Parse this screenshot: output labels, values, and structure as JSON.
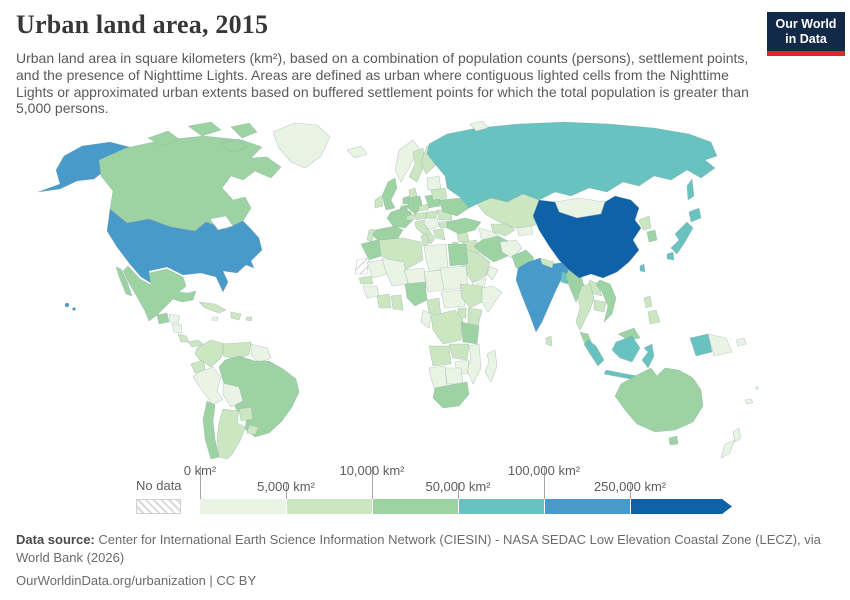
{
  "header": {
    "title": "Urban land area, 2015",
    "logo_line1": "Our World",
    "logo_line2": "in Data"
  },
  "subtitle": "Urban land area in square kilometers (km²), based on a combination of population counts (persons), settlement points, and the presence of Nighttime Lights. Areas are defined as urban where contiguous lighted cells from the Nighttime Lights or approximated urban extents based on buffered settlement points for which the total population is greater than 5,000 persons.",
  "legend": {
    "no_data_label": "No data",
    "segment_width": 86,
    "ticks": [
      {
        "label": "0 km²",
        "row": "top",
        "pos": 0
      },
      {
        "label": "5,000 km²",
        "row": "bottom",
        "pos": 1
      },
      {
        "label": "10,000 km²",
        "row": "top",
        "pos": 2
      },
      {
        "label": "50,000 km²",
        "row": "bottom",
        "pos": 3
      },
      {
        "label": "100,000 km²",
        "row": "top",
        "pos": 4
      },
      {
        "label": "250,000 km²",
        "row": "bottom",
        "pos": 5
      }
    ]
  },
  "footer": {
    "source_label": "Data source:",
    "source_text": " Center for International Earth Science Information Network (CIESIN) - NASA SEDAC Low Elevation Coastal Zone (LECZ), via World Bank (2026)",
    "link_line": "OurWorldinData.org/urbanization | CC BY"
  },
  "chart_data": {
    "type": "choropleth",
    "title": "Urban land area, 2015",
    "unit": "km²",
    "bin_thresholds": [
      0,
      5000,
      10000,
      50000,
      100000,
      250000
    ],
    "bins": [
      {
        "label": "0 km² – 5,000 km²",
        "color": "#e9f4e4"
      },
      {
        "label": "5,000 km² – 10,000 km²",
        "color": "#cbe6c1"
      },
      {
        "label": "10,000 km² – 50,000 km²",
        "color": "#9dd3a2"
      },
      {
        "label": "50,000 km² – 100,000 km²",
        "color": "#68c2c0"
      },
      {
        "label": "100,000 km² – 250,000 km²",
        "color": "#479ac9"
      },
      {
        "label": "250,000+ km²",
        "color": "#0f62a7"
      }
    ],
    "no_data_style": "hatched",
    "legend_position": "bottom",
    "regions": {
      "usa": 5,
      "canada": 3,
      "greenland": 1,
      "mexico": 3,
      "guatemala": 3,
      "honduras": 1,
      "nicaragua": 1,
      "costa-rica": 2,
      "panama": 2,
      "cuba": 2,
      "jamaica": 1,
      "hispaniola": 2,
      "puerto-rico": 2,
      "colombia": 2,
      "venezuela": 2,
      "guyanas": 1,
      "ecuador": 2,
      "peru": 1,
      "brazil": 3,
      "bolivia": 1,
      "paraguay": 2,
      "uruguay": 2,
      "argentina": 2,
      "chile": 3,
      "iceland": 1,
      "ireland": 2,
      "uk": 3,
      "norway": 1,
      "sweden": 2,
      "finland": 2,
      "denmark": 2,
      "netherlands": 3,
      "belgium": 3,
      "germany": 3,
      "france": 3,
      "spain": 3,
      "portugal": 2,
      "italy": 2,
      "switzerland": 2,
      "austria": 2,
      "czechia": 2,
      "poland": 3,
      "hungary": 2,
      "balkans": 1,
      "romania": 2,
      "bulgaria": 2,
      "greece": 2,
      "baltics": 1,
      "belarus": 2,
      "ukraine": 3,
      "russia": 4,
      "svalbard": 1,
      "kazakhstan": 2,
      "uzbekistan": 2,
      "turkmenistan": 1,
      "kyrgyzstan": 1,
      "turkey": 3,
      "syria": 2,
      "jordan": 2,
      "iraq": 2,
      "iran": 3,
      "saudi-arabia": 2,
      "yemen": 1,
      "oman": 1,
      "afghanistan": 1,
      "pakistan": 3,
      "india": 5,
      "nepal": 2,
      "sri-lanka": 2,
      "bangladesh": 4,
      "myanmar": 3,
      "mongolia": 1,
      "china": 6,
      "north-korea": 2,
      "south-korea": 3,
      "japan": 4,
      "taiwan": 4,
      "laos": 2,
      "thailand": 2,
      "cambodia": 2,
      "vietnam": 3,
      "malaysia": 3,
      "philippines": 2,
      "indonesia": 4,
      "papua-new-guinea": 1,
      "australia": 3,
      "new-zealand": 1,
      "fiji": 1,
      "new-caledonia": 1,
      "morocco": 3,
      "western-sahara": "no-data",
      "algeria": 2,
      "tunisia": 2,
      "libya": 1,
      "egypt": 3,
      "mauritania": 1,
      "mali": 1,
      "niger": 1,
      "chad": 1,
      "sudan": 1,
      "senegal": 2,
      "guinea": 1,
      "ivory-coast": 2,
      "ghana": 2,
      "nigeria": 3,
      "cameroon": 2,
      "central-african-republic": 1,
      "ethiopia": 2,
      "somalia": 1,
      "kenya": 2,
      "uganda": 2,
      "drc": 2,
      "congo": 1,
      "tanzania": 3,
      "angola": 2,
      "zambia": 2,
      "mozambique": 1,
      "zimbabwe": 1,
      "botswana": 1,
      "namibia": 1,
      "south-africa": 3,
      "madagascar": 1
    }
  }
}
